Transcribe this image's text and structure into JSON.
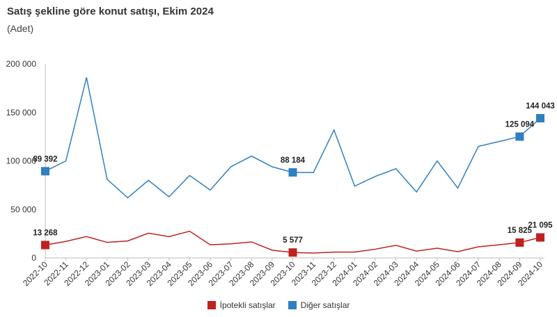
{
  "chart_data": {
    "type": "line",
    "title": "Satış şekline göre konut satışı, Ekim 2024",
    "subtitle": "(Adet)",
    "categories": [
      "2022-10",
      "2022-11",
      "2022-12",
      "2023-01",
      "2023-02",
      "2023-03",
      "2023-04",
      "2023-05",
      "2023-06",
      "2023-07",
      "2023-08",
      "2023-09",
      "2023-10",
      "2023-11",
      "2023-12",
      "2024-01",
      "2024-02",
      "2024-03",
      "2024-04",
      "2024-05",
      "2024-06",
      "2024-07",
      "2024-08",
      "2024-09",
      "2024-10"
    ],
    "y_ticks": [
      0,
      50000,
      100000,
      150000,
      200000
    ],
    "y_tick_labels": [
      "0",
      "50 000",
      "100 000",
      "150 000",
      "200 000"
    ],
    "ylim": [
      0,
      200000
    ],
    "grid": false,
    "legend_position": "bottom",
    "series": [
      {
        "name": "İpotekli satışlar",
        "color": "#c0201f",
        "values": [
          13268,
          17000,
          22000,
          16000,
          17500,
          25500,
          22000,
          27500,
          13500,
          14500,
          16500,
          8000,
          5577,
          5000,
          6000,
          6000,
          9000,
          13000,
          7000,
          10000,
          6500,
          11500,
          13500,
          15825,
          21095
        ],
        "labeled_points": [
          {
            "index": 0,
            "text": "13 268"
          },
          {
            "index": 12,
            "text": "5 577"
          },
          {
            "index": 23,
            "text": "15 825"
          },
          {
            "index": 24,
            "text": "21 095"
          }
        ]
      },
      {
        "name": "Diğer satışlar",
        "color": "#2f7fc1",
        "values": [
          89392,
          100000,
          186000,
          81000,
          62000,
          80000,
          63000,
          85000,
          70000,
          94000,
          105000,
          94000,
          88184,
          88000,
          132000,
          74000,
          84000,
          92000,
          68000,
          100000,
          72000,
          115000,
          120000,
          125094,
          144043
        ],
        "labeled_points": [
          {
            "index": 0,
            "text": "89 392"
          },
          {
            "index": 12,
            "text": "88 184"
          },
          {
            "index": 23,
            "text": "125 094"
          },
          {
            "index": 24,
            "text": "144 043"
          }
        ]
      }
    ]
  }
}
